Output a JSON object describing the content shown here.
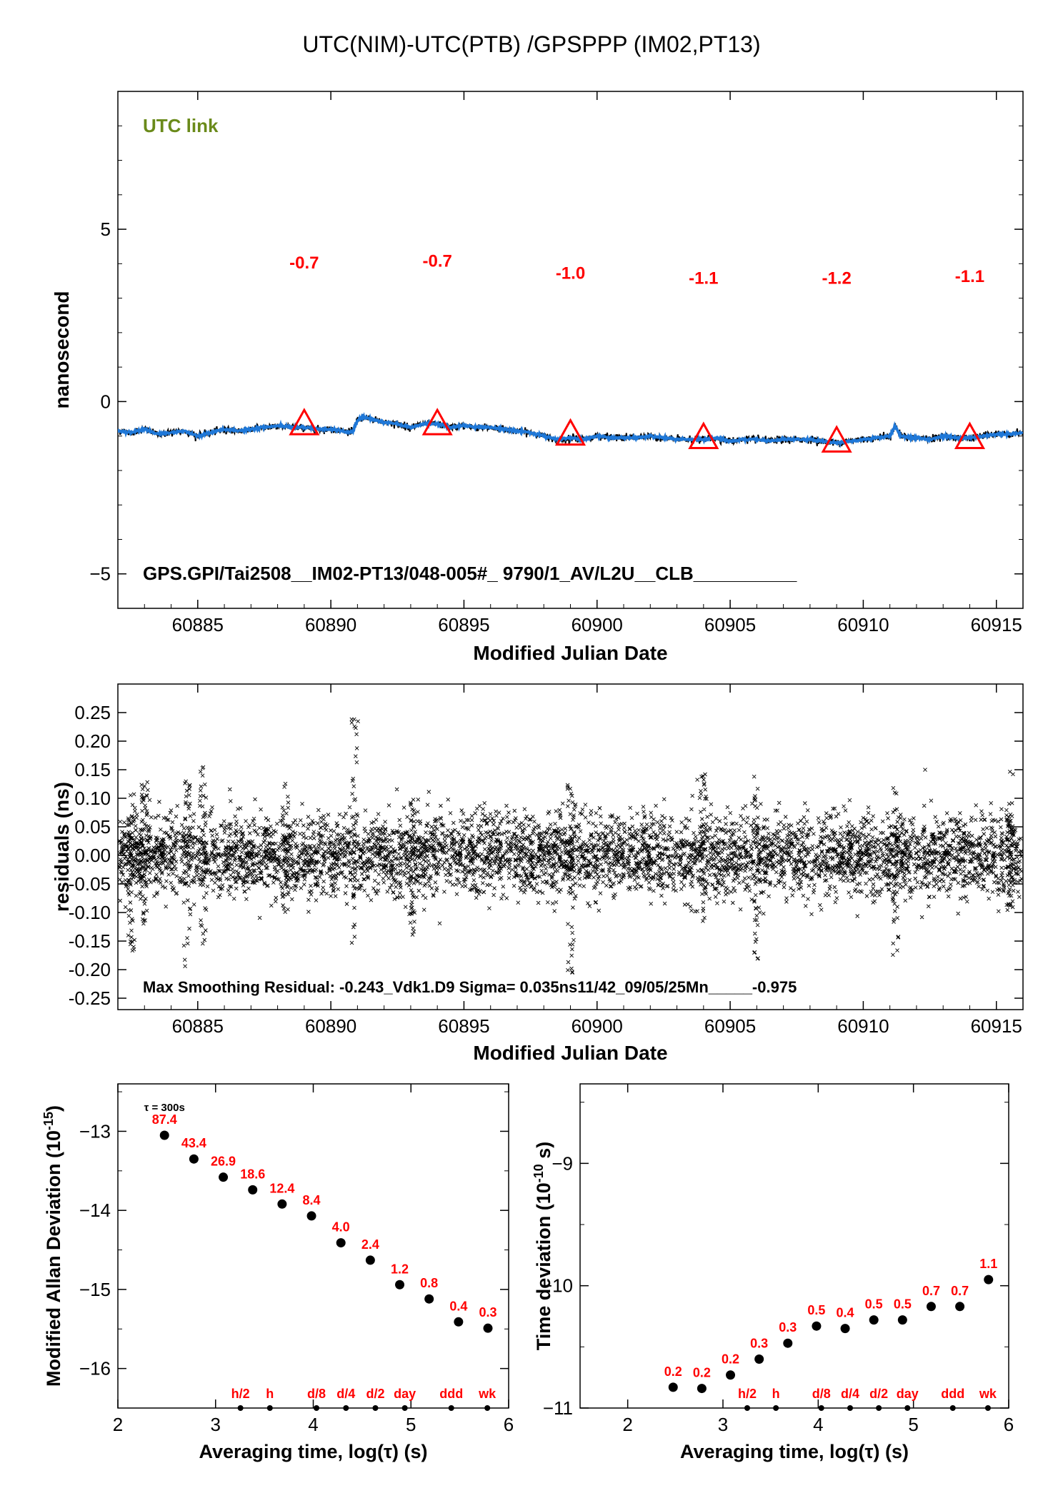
{
  "title": "UTC(NIM)-UTC(PTB)  /GPSPPP  (IM02,PT13)",
  "colors": {
    "series": "#1f78d8",
    "marker": "#ff0000",
    "points": "#000000",
    "legend_green": "#6a8a1a",
    "annotation": "#ff0000"
  },
  "chart_data": [
    {
      "id": "offset",
      "type": "line",
      "ylabel": "nanosecond",
      "xlabel": "Modified Julian Date",
      "xlim": [
        60882,
        60916
      ],
      "ylim": [
        -6,
        9
      ],
      "yticks": [
        -5,
        0,
        5
      ],
      "xticks": [
        60885,
        60890,
        60895,
        60900,
        60905,
        60910,
        60915
      ],
      "legend_text": "UTC link",
      "footer_text": "GPS.GPI/Tai2508__IM02-PT13/048-005#_  9790/1_AV/L2U__CLB__________",
      "series": [
        {
          "x": [
            60882.0,
            60882.5,
            60883.0,
            60883.5,
            60884.0,
            60884.5,
            60885.0,
            60885.5,
            60886.0,
            60886.5,
            60887.0,
            60887.5,
            60888.0,
            60888.5,
            60889.0,
            60889.5,
            60890.0,
            60890.4,
            60890.8,
            60891.0,
            60891.2,
            60891.5,
            60892.0,
            60892.5,
            60893.0,
            60893.5,
            60894.0,
            60894.5,
            60895.0,
            60895.5,
            60896.0,
            60896.5,
            60897.0,
            60897.5,
            60898.0,
            60898.5,
            60899.0,
            60899.5,
            60900.0,
            60900.5,
            60901.0,
            60901.5,
            60902.0,
            60902.5,
            60903.0,
            60903.5,
            60904.0,
            60904.5,
            60905.0,
            60905.5,
            60906.0,
            60906.5,
            60907.0,
            60907.5,
            60908.0,
            60908.5,
            60909.0,
            60909.5,
            60910.0,
            60910.5,
            60911.0,
            60911.2,
            60911.4,
            60911.8,
            60912.0,
            60912.5,
            60913.0,
            60913.5,
            60914.0,
            60914.5,
            60915.0,
            60915.5,
            60916.0
          ],
          "y": [
            -0.85,
            -0.9,
            -0.8,
            -0.95,
            -0.9,
            -0.85,
            -1.0,
            -0.9,
            -0.8,
            -0.85,
            -0.8,
            -0.75,
            -0.7,
            -0.75,
            -0.75,
            -0.8,
            -0.8,
            -0.85,
            -0.9,
            -0.55,
            -0.45,
            -0.5,
            -0.6,
            -0.65,
            -0.75,
            -0.65,
            -0.65,
            -0.75,
            -0.7,
            -0.75,
            -0.75,
            -0.8,
            -0.85,
            -0.9,
            -1.0,
            -1.1,
            -1.05,
            -1.1,
            -1.0,
            -1.05,
            -1.05,
            -1.05,
            -1.0,
            -1.05,
            -1.1,
            -1.1,
            -1.1,
            -1.05,
            -1.15,
            -1.1,
            -1.1,
            -1.15,
            -1.1,
            -1.1,
            -1.1,
            -1.15,
            -1.2,
            -1.15,
            -1.1,
            -1.05,
            -1.0,
            -0.7,
            -1.0,
            -1.05,
            -1.05,
            -1.1,
            -1.0,
            -1.05,
            -1.05,
            -1.0,
            -0.95,
            -0.95,
            -0.9
          ]
        }
      ],
      "markers": {
        "x": [
          60889,
          60894,
          60899,
          60904,
          60909,
          60914
        ],
        "y": [
          -0.7,
          -0.7,
          -1.0,
          -1.1,
          -1.2,
          -1.1
        ],
        "labels": [
          "-0.7",
          "-0.7",
          "-1.0",
          "-1.1",
          "-1.2",
          "-1.1"
        ],
        "label_y": [
          4.05,
          4.1,
          3.75,
          3.6,
          3.6,
          3.65
        ]
      }
    },
    {
      "id": "residuals",
      "type": "scatter",
      "ylabel": "residuals (ns)",
      "xlabel": "Modified Julian Date",
      "xlim": [
        60882,
        60916
      ],
      "ylim": [
        -0.27,
        0.3
      ],
      "yticks": [
        0.25,
        0.2,
        0.15,
        0.1,
        0.05,
        0.0,
        -0.05,
        -0.1,
        -0.15,
        -0.2,
        -0.25
      ],
      "ytick_labels": [
        "0.25",
        "0.20",
        "0.15",
        "0.10",
        "0.05",
        "0.00",
        "-0.05",
        "-0.10",
        "-0.15",
        "-0.20",
        "-0.25"
      ],
      "xticks": [
        60885,
        60890,
        60895,
        60900,
        60905,
        60910,
        60915
      ],
      "footer_text": "Max Smoothing Residual: -0.243_Vdk1.D9  Sigma= 0.035ns11/42_09/05/25Mn_____-0.975",
      "sigma": 0.035,
      "spikes": [
        {
          "x": 60882.5,
          "lo": -0.18,
          "hi": 0.12
        },
        {
          "x": 60883.0,
          "lo": -0.12,
          "hi": 0.13
        },
        {
          "x": 60884.6,
          "lo": -0.2,
          "hi": 0.13
        },
        {
          "x": 60885.2,
          "lo": -0.19,
          "hi": 0.16
        },
        {
          "x": 60888.3,
          "lo": -0.1,
          "hi": 0.12
        },
        {
          "x": 60890.9,
          "lo": -0.16,
          "hi": 0.245
        },
        {
          "x": 60893.1,
          "lo": -0.14,
          "hi": 0.1
        },
        {
          "x": 60899.0,
          "lo": -0.21,
          "hi": 0.13
        },
        {
          "x": 60904.0,
          "lo": -0.12,
          "hi": 0.15
        },
        {
          "x": 60906.0,
          "lo": -0.2,
          "hi": 0.16
        },
        {
          "x": 60911.2,
          "lo": -0.18,
          "hi": 0.13
        },
        {
          "x": 60915.5,
          "lo": -0.1,
          "hi": 0.16
        }
      ]
    },
    {
      "id": "mdev",
      "type": "scatter",
      "ylabel": "Modified Allan Deviation (10^-15)",
      "xlabel": "Averaging time, log(τ) (s)",
      "xlim": [
        2,
        6
      ],
      "ylim": [
        -16.5,
        -12.4
      ],
      "yticks": [
        -13,
        -14,
        -15,
        -16
      ],
      "xticks": [
        2,
        3,
        4,
        5,
        6
      ],
      "tau_note": "τ = 300s",
      "x": [
        2.477,
        2.778,
        3.079,
        3.38,
        3.681,
        3.982,
        4.283,
        4.584,
        4.885,
        5.186,
        5.487,
        5.788
      ],
      "y": [
        -13.05,
        -13.35,
        -13.58,
        -13.74,
        -13.92,
        -14.07,
        -14.41,
        -14.63,
        -14.94,
        -15.12,
        -15.41,
        -15.49
      ],
      "labels": [
        "87.4",
        "43.4",
        "26.9",
        "18.6",
        "12.4",
        "8.4",
        "4.0",
        "2.4",
        "1.2",
        "0.8",
        "0.4",
        "0.3"
      ],
      "time_marks": {
        "labels": [
          "h/2",
          "h",
          "d/8",
          "d/4",
          "d/2",
          "day",
          "ddd",
          "wk"
        ],
        "x": [
          3.255,
          3.556,
          4.033,
          4.335,
          4.636,
          4.937,
          5.413,
          5.782
        ]
      }
    },
    {
      "id": "tdev",
      "type": "scatter",
      "ylabel": "Time deviation (10^-10 s)",
      "xlabel": "Averaging time, log(τ) (s)",
      "xlim": [
        1.5,
        6
      ],
      "ylim": [
        -11,
        -8.35
      ],
      "yticks": [
        -9,
        -10,
        -11
      ],
      "xticks": [
        2,
        3,
        4,
        5,
        6
      ],
      "x": [
        2.477,
        2.778,
        3.079,
        3.38,
        3.681,
        3.982,
        4.283,
        4.584,
        4.885,
        5.186,
        5.487,
        5.788
      ],
      "y": [
        -10.83,
        -10.84,
        -10.73,
        -10.6,
        -10.47,
        -10.33,
        -10.35,
        -10.28,
        -10.28,
        -10.17,
        -10.17,
        -9.95
      ],
      "labels": [
        "0.2",
        "0.2",
        "0.2",
        "0.3",
        "0.3",
        "0.5",
        "0.4",
        "0.5",
        "0.5",
        "0.7",
        "0.7",
        "1.1"
      ],
      "time_marks": {
        "labels": [
          "h/2",
          "h",
          "d/8",
          "d/4",
          "d/2",
          "day",
          "ddd",
          "wk"
        ],
        "x": [
          3.255,
          3.556,
          4.033,
          4.335,
          4.636,
          4.937,
          5.413,
          5.782
        ]
      }
    }
  ]
}
